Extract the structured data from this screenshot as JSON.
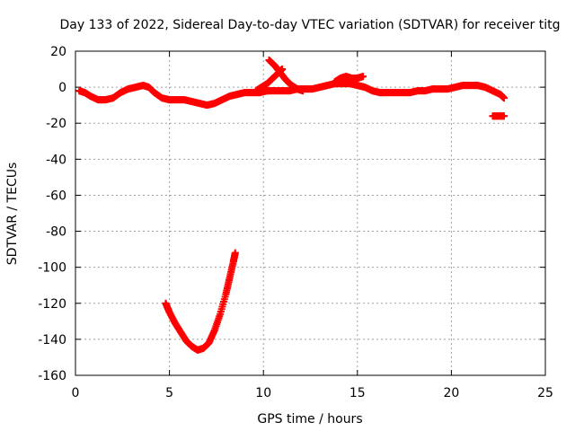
{
  "chart_data": {
    "type": "scatter",
    "title": "Day 133 of 2022, Sidereal Day-to-day VTEC variation (SDTVAR) for receiver titg",
    "xlabel": "GPS time / hours",
    "ylabel": "SDTVAR / TECUs",
    "xlim": [
      0,
      25
    ],
    "ylim": [
      -160,
      20
    ],
    "xticks": [
      0,
      5,
      10,
      15,
      20,
      25
    ],
    "yticks": [
      -160,
      -140,
      -120,
      -100,
      -80,
      -60,
      -40,
      -20,
      0,
      20
    ],
    "grid": true,
    "marker": "plus",
    "color": "#ff0000",
    "series": [
      {
        "name": "main trace",
        "x": [
          0.2,
          0.5,
          0.8,
          1.2,
          1.6,
          2.0,
          2.4,
          2.8,
          3.2,
          3.6,
          3.9,
          4.2,
          4.6,
          5.0,
          5.4,
          5.8,
          6.2,
          6.6,
          7.0,
          7.4,
          7.8,
          8.2,
          8.6,
          9.0,
          9.4,
          9.8,
          10.2,
          10.6,
          11.0,
          11.4,
          11.8,
          12.2,
          12.6,
          13.0,
          13.4,
          13.8,
          14.2,
          14.6,
          15.0,
          15.4,
          15.8,
          16.2,
          16.6,
          17.0,
          17.4,
          17.8,
          18.2,
          18.6,
          19.0,
          19.4,
          19.8,
          20.2,
          20.6,
          21.0,
          21.4,
          21.8,
          22.2,
          22.6,
          22.8
        ],
        "y": [
          -2,
          -3,
          -5,
          -7,
          -7,
          -6,
          -3,
          -1,
          0,
          1,
          0,
          -3,
          -6,
          -7,
          -7,
          -7,
          -8,
          -9,
          -10,
          -9,
          -7,
          -5,
          -4,
          -3,
          -3,
          -3,
          -2,
          -2,
          -2,
          -2,
          -1,
          -1,
          -1,
          0,
          1,
          2,
          2,
          2,
          1,
          0,
          -2,
          -3,
          -3,
          -3,
          -3,
          -3,
          -2,
          -2,
          -1,
          -1,
          -1,
          0,
          1,
          1,
          1,
          0,
          -2,
          -4,
          -6
        ]
      },
      {
        "name": "rising segment",
        "x": [
          9.6,
          9.9,
          10.2,
          10.5,
          10.8,
          11.0
        ],
        "y": [
          -2,
          0,
          2,
          5,
          8,
          10
        ]
      },
      {
        "name": "descending segment",
        "x": [
          10.3,
          10.6,
          10.9,
          11.2,
          11.5,
          11.8,
          12.1
        ],
        "y": [
          15,
          12,
          8,
          4,
          1,
          -1,
          -2
        ]
      },
      {
        "name": "bump segment",
        "x": [
          13.8,
          14.1,
          14.4,
          14.7,
          15.0,
          15.3
        ],
        "y": [
          3,
          5,
          6,
          5,
          5,
          6
        ]
      },
      {
        "name": "late offset segment",
        "x": [
          22.2,
          22.5,
          22.8
        ],
        "y": [
          -16,
          -16,
          -16
        ]
      },
      {
        "name": "deep dip",
        "x": [
          4.8,
          5.0,
          5.3,
          5.6,
          5.9,
          6.2,
          6.5,
          6.8,
          7.1,
          7.4,
          7.7,
          8.0,
          8.2,
          8.4,
          8.5
        ],
        "y": [
          -120,
          -125,
          -131,
          -136,
          -141,
          -144,
          -146,
          -145,
          -142,
          -135,
          -126,
          -115,
          -106,
          -97,
          -92
        ]
      }
    ]
  }
}
